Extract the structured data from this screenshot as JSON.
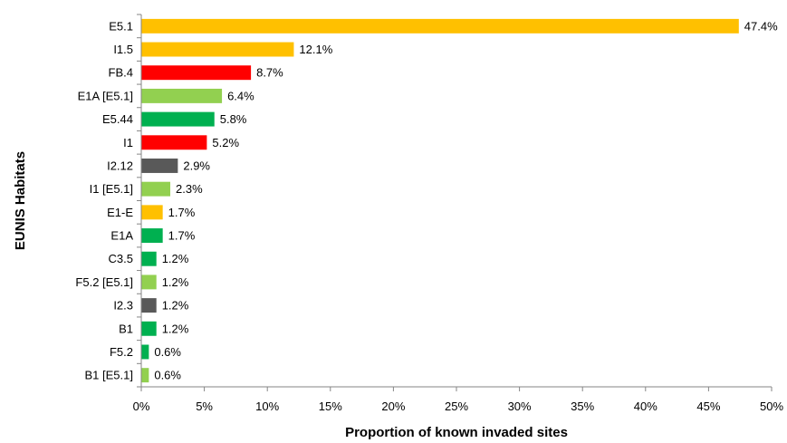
{
  "chart_data": {
    "type": "bar",
    "orientation": "horizontal",
    "title": "",
    "xlabel": "Proportion of known invaded sites",
    "ylabel": "EUNIS Habitats",
    "xlim": [
      0,
      50
    ],
    "x_ticks": [
      "0%",
      "5%",
      "10%",
      "15%",
      "20%",
      "25%",
      "30%",
      "35%",
      "40%",
      "45%",
      "50%"
    ],
    "grid": false,
    "legend": "none",
    "categories": [
      "E5.1",
      "I1.5",
      "FB.4",
      "E1A [E5.1]",
      "E5.44",
      "I1",
      "I2.12",
      "I1 [E5.1]",
      "E1-E",
      "E1A",
      "C3.5",
      "F5.2 [E5.1]",
      "I2.3",
      "B1",
      "F5.2",
      "B1 [E5.1]"
    ],
    "values": [
      47.4,
      12.1,
      8.7,
      6.4,
      5.8,
      5.2,
      2.9,
      2.3,
      1.7,
      1.7,
      1.2,
      1.2,
      1.2,
      1.2,
      0.6,
      0.6
    ],
    "value_labels": [
      "47.4%",
      "12.1%",
      "8.7%",
      "6.4%",
      "5.8%",
      "5.2%",
      "2.9%",
      "2.3%",
      "1.7%",
      "1.7%",
      "1.2%",
      "1.2%",
      "1.2%",
      "1.2%",
      "0.6%",
      "0.6%"
    ],
    "bar_colors": [
      "#FFC000",
      "#FFC000",
      "#FF0000",
      "#92D050",
      "#00B050",
      "#FF0000",
      "#595959",
      "#92D050",
      "#FFC000",
      "#00B050",
      "#00B050",
      "#92D050",
      "#595959",
      "#00B050",
      "#00B050",
      "#92D050"
    ]
  }
}
